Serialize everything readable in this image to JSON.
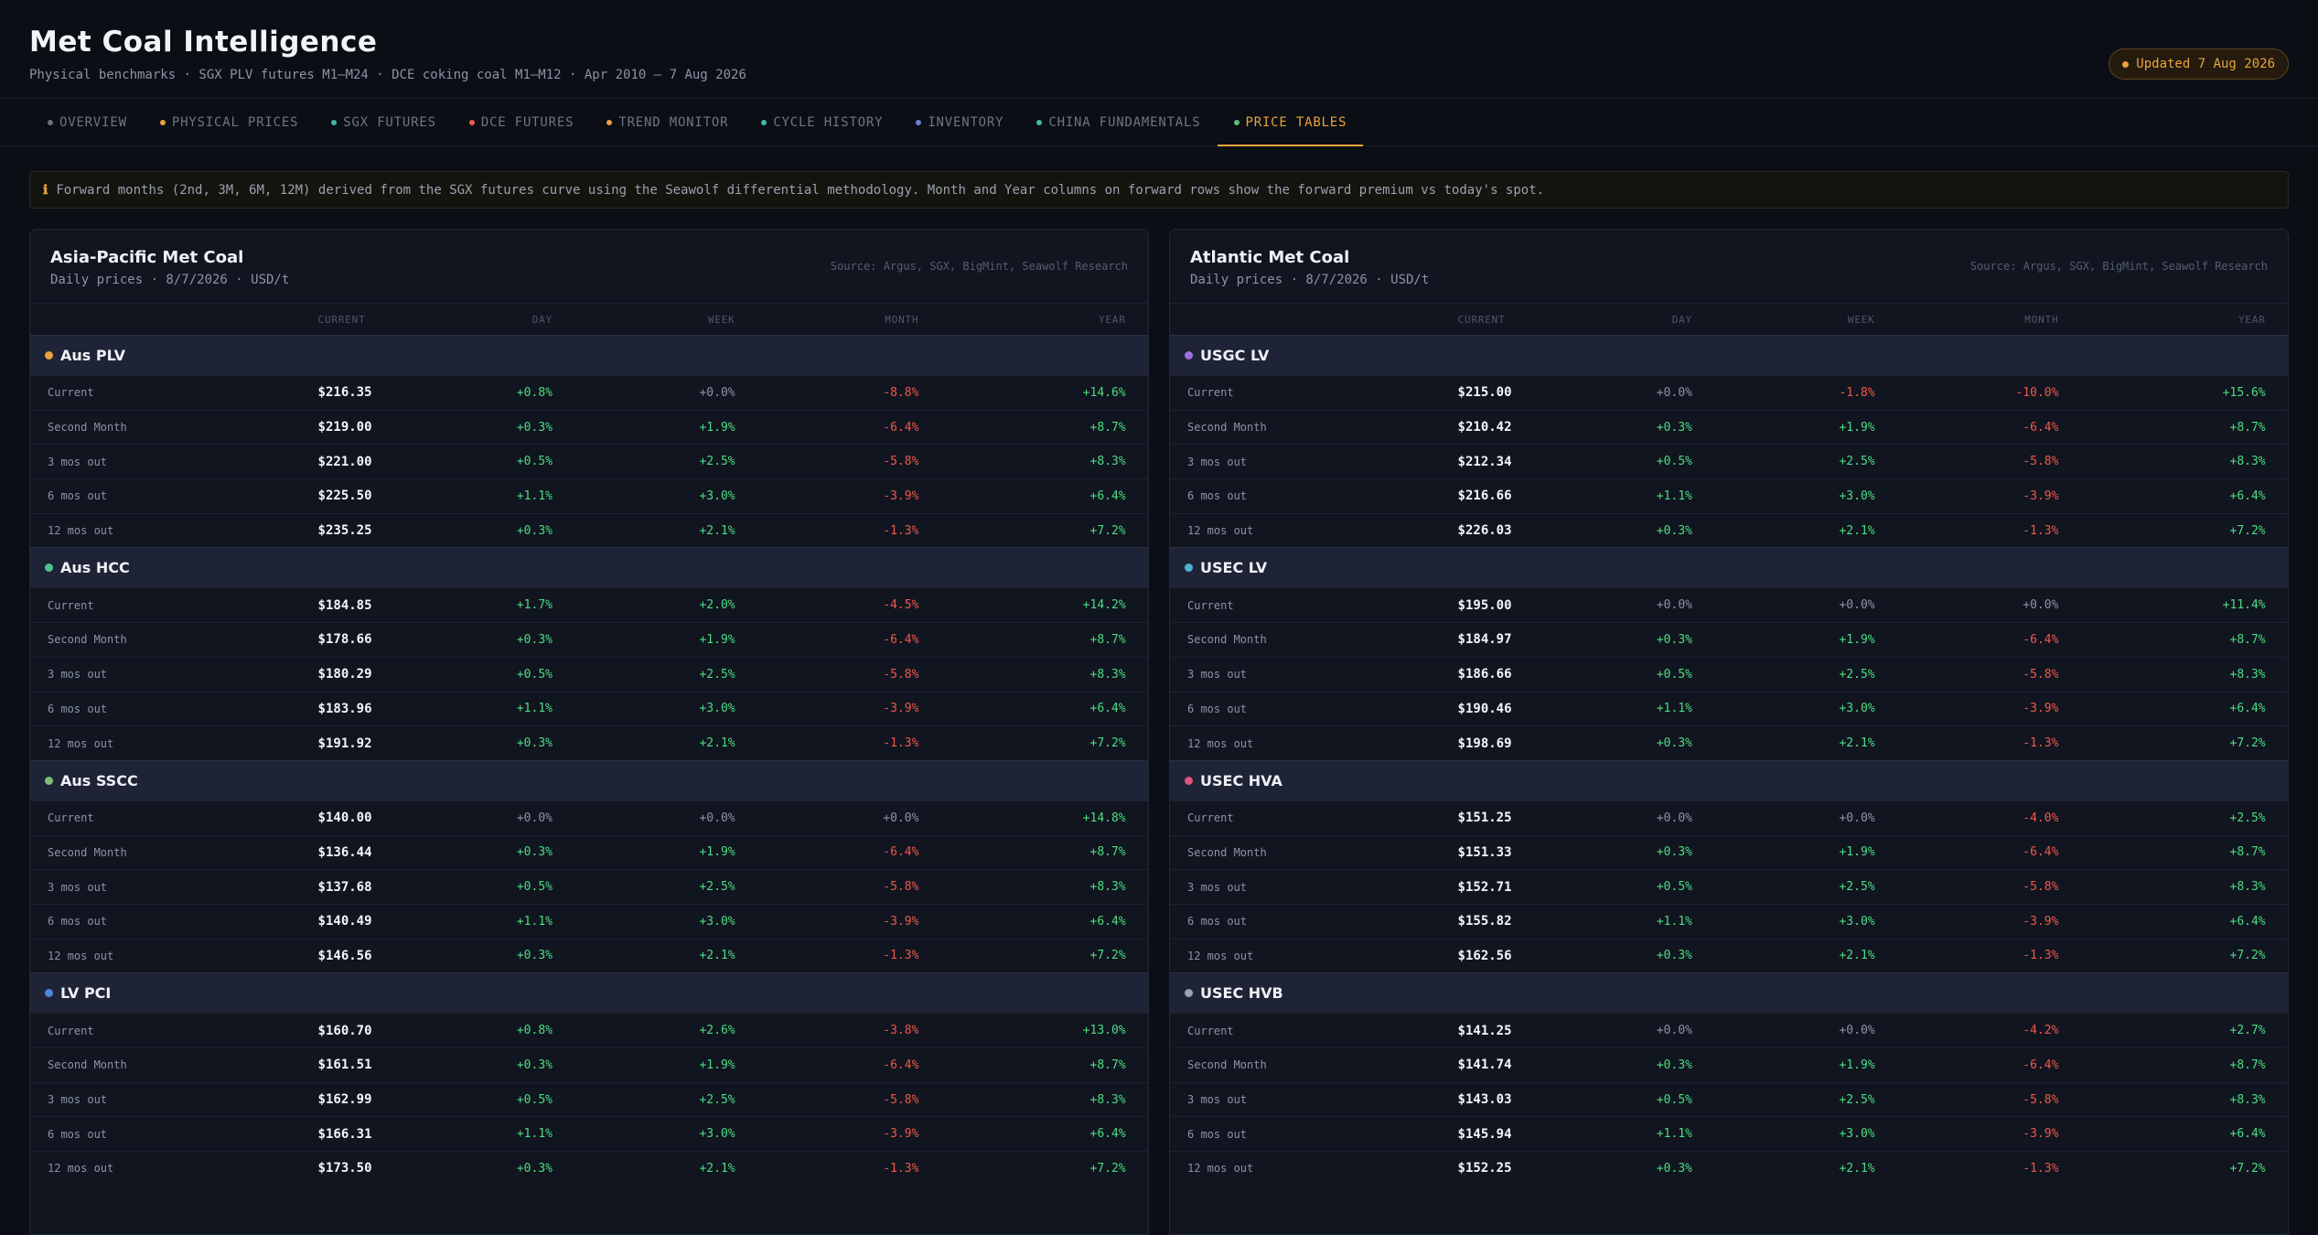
{
  "header": {
    "title": "Met Coal Intelligence",
    "subtitle": "Physical benchmarks · SGX PLV futures M1–M24 · DCE coking coal M1–M12 · Apr 2010 – 7 Aug 2026",
    "badge": "Updated 7 Aug 2026"
  },
  "tabs": [
    {
      "label": "OVERVIEW",
      "color": "#6b7280"
    },
    {
      "label": "PHYSICAL PRICES",
      "color": "#e8a33d"
    },
    {
      "label": "SGX FUTURES",
      "color": "#3fb8a8"
    },
    {
      "label": "DCE FUTURES",
      "color": "#ef5b4c"
    },
    {
      "label": "TREND MONITOR",
      "color": "#e8a33d"
    },
    {
      "label": "CYCLE HISTORY",
      "color": "#3fb8a8"
    },
    {
      "label": "INVENTORY",
      "color": "#6b7fd6"
    },
    {
      "label": "CHINA FUNDAMENTALS",
      "color": "#3fb8a8"
    },
    {
      "label": "PRICE TABLES",
      "color": "#5ec27a",
      "active": true
    }
  ],
  "note": "Forward months (2nd, 3M, 6M, 12M) derived from the SGX futures curve using the Seawolf differential methodology. Month and Year columns on forward rows show the forward premium vs today's spot.",
  "panels": [
    {
      "title": "Asia-Pacific Met Coal",
      "subtitle": "Daily prices · 8/7/2026 · USD/t",
      "source": "Source: Argus, SGX, BigMint, Seawolf Research",
      "columns": [
        "CURRENT",
        "DAY",
        "WEEK",
        "MONTH",
        "YEAR"
      ],
      "groups": [
        {
          "name": "Aus PLV",
          "color": "#e8a33d",
          "rows": [
            [
              "Current",
              "$216.35",
              "+0.8%",
              "+0.0%",
              "-8.8%",
              "+14.6%"
            ],
            [
              "Second Month",
              "$219.00",
              "+0.3%",
              "+1.9%",
              "-6.4%",
              "+8.7%"
            ],
            [
              "3 mos out",
              "$221.00",
              "+0.5%",
              "+2.5%",
              "-5.8%",
              "+8.3%"
            ],
            [
              "6 mos out",
              "$225.50",
              "+1.1%",
              "+3.0%",
              "-3.9%",
              "+6.4%"
            ],
            [
              "12 mos out",
              "$235.25",
              "+0.3%",
              "+2.1%",
              "-1.3%",
              "+7.2%"
            ]
          ]
        },
        {
          "name": "Aus HCC",
          "color": "#4cc38a",
          "rows": [
            [
              "Current",
              "$184.85",
              "+1.7%",
              "+2.0%",
              "-4.5%",
              "+14.2%"
            ],
            [
              "Second Month",
              "$178.66",
              "+0.3%",
              "+1.9%",
              "-6.4%",
              "+8.7%"
            ],
            [
              "3 mos out",
              "$180.29",
              "+0.5%",
              "+2.5%",
              "-5.8%",
              "+8.3%"
            ],
            [
              "6 mos out",
              "$183.96",
              "+1.1%",
              "+3.0%",
              "-3.9%",
              "+6.4%"
            ],
            [
              "12 mos out",
              "$191.92",
              "+0.3%",
              "+2.1%",
              "-1.3%",
              "+7.2%"
            ]
          ]
        },
        {
          "name": "Aus SSCC",
          "color": "#7fbf7a",
          "rows": [
            [
              "Current",
              "$140.00",
              "+0.0%",
              "+0.0%",
              "+0.0%",
              "+14.8%"
            ],
            [
              "Second Month",
              "$136.44",
              "+0.3%",
              "+1.9%",
              "-6.4%",
              "+8.7%"
            ],
            [
              "3 mos out",
              "$137.68",
              "+0.5%",
              "+2.5%",
              "-5.8%",
              "+8.3%"
            ],
            [
              "6 mos out",
              "$140.49",
              "+1.1%",
              "+3.0%",
              "-3.9%",
              "+6.4%"
            ],
            [
              "12 mos out",
              "$146.56",
              "+0.3%",
              "+2.1%",
              "-1.3%",
              "+7.2%"
            ]
          ]
        },
        {
          "name": "LV PCI",
          "color": "#4f86d9",
          "rows": [
            [
              "Current",
              "$160.70",
              "+0.8%",
              "+2.6%",
              "-3.8%",
              "+13.0%"
            ],
            [
              "Second Month",
              "$161.51",
              "+0.3%",
              "+1.9%",
              "-6.4%",
              "+8.7%"
            ],
            [
              "3 mos out",
              "$162.99",
              "+0.5%",
              "+2.5%",
              "-5.8%",
              "+8.3%"
            ],
            [
              "6 mos out",
              "$166.31",
              "+1.1%",
              "+3.0%",
              "-3.9%",
              "+6.4%"
            ],
            [
              "12 mos out",
              "$173.50",
              "+0.3%",
              "+2.1%",
              "-1.3%",
              "+7.2%"
            ]
          ]
        }
      ]
    },
    {
      "title": "Atlantic Met Coal",
      "subtitle": "Daily prices · 8/7/2026 · USD/t",
      "source": "Source: Argus, SGX, BigMint, Seawolf Research",
      "columns": [
        "CURRENT",
        "DAY",
        "WEEK",
        "MONTH",
        "YEAR"
      ],
      "groups": [
        {
          "name": "USGC LV",
          "color": "#9b6fe0",
          "rows": [
            [
              "Current",
              "$215.00",
              "+0.0%",
              "-1.8%",
              "-10.0%",
              "+15.6%"
            ],
            [
              "Second Month",
              "$210.42",
              "+0.3%",
              "+1.9%",
              "-6.4%",
              "+8.7%"
            ],
            [
              "3 mos out",
              "$212.34",
              "+0.5%",
              "+2.5%",
              "-5.8%",
              "+8.3%"
            ],
            [
              "6 mos out",
              "$216.66",
              "+1.1%",
              "+3.0%",
              "-3.9%",
              "+6.4%"
            ],
            [
              "12 mos out",
              "$226.03",
              "+0.3%",
              "+2.1%",
              "-1.3%",
              "+7.2%"
            ]
          ]
        },
        {
          "name": "USEC LV",
          "color": "#4fb3d0",
          "rows": [
            [
              "Current",
              "$195.00",
              "+0.0%",
              "+0.0%",
              "+0.0%",
              "+11.4%"
            ],
            [
              "Second Month",
              "$184.97",
              "+0.3%",
              "+1.9%",
              "-6.4%",
              "+8.7%"
            ],
            [
              "3 mos out",
              "$186.66",
              "+0.5%",
              "+2.5%",
              "-5.8%",
              "+8.3%"
            ],
            [
              "6 mos out",
              "$190.46",
              "+1.1%",
              "+3.0%",
              "-3.9%",
              "+6.4%"
            ],
            [
              "12 mos out",
              "$198.69",
              "+0.3%",
              "+2.1%",
              "-1.3%",
              "+7.2%"
            ]
          ]
        },
        {
          "name": "USEC HVA",
          "color": "#e0557a",
          "rows": [
            [
              "Current",
              "$151.25",
              "+0.0%",
              "+0.0%",
              "-4.0%",
              "+2.5%"
            ],
            [
              "Second Month",
              "$151.33",
              "+0.3%",
              "+1.9%",
              "-6.4%",
              "+8.7%"
            ],
            [
              "3 mos out",
              "$152.71",
              "+0.5%",
              "+2.5%",
              "-5.8%",
              "+8.3%"
            ],
            [
              "6 mos out",
              "$155.82",
              "+1.1%",
              "+3.0%",
              "-3.9%",
              "+6.4%"
            ],
            [
              "12 mos out",
              "$162.56",
              "+0.3%",
              "+2.1%",
              "-1.3%",
              "+7.2%"
            ]
          ]
        },
        {
          "name": "USEC HVB",
          "color": "#9ca3af",
          "rows": [
            [
              "Current",
              "$141.25",
              "+0.0%",
              "+0.0%",
              "-4.2%",
              "+2.7%"
            ],
            [
              "Second Month",
              "$141.74",
              "+0.3%",
              "+1.9%",
              "-6.4%",
              "+8.7%"
            ],
            [
              "3 mos out",
              "$143.03",
              "+0.5%",
              "+2.5%",
              "-5.8%",
              "+8.3%"
            ],
            [
              "6 mos out",
              "$145.94",
              "+1.1%",
              "+3.0%",
              "-3.9%",
              "+6.4%"
            ],
            [
              "12 mos out",
              "$152.25",
              "+0.3%",
              "+2.1%",
              "-1.3%",
              "+7.2%"
            ]
          ]
        }
      ]
    }
  ]
}
